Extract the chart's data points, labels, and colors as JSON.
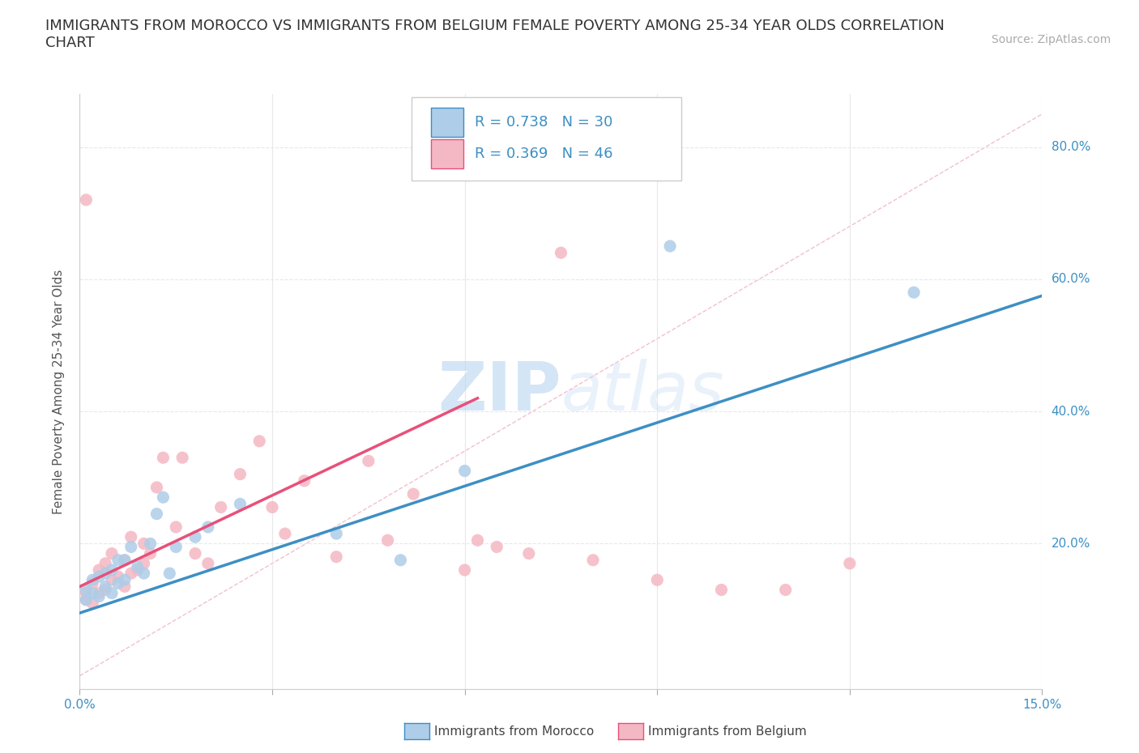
{
  "title": "IMMIGRANTS FROM MOROCCO VS IMMIGRANTS FROM BELGIUM FEMALE POVERTY AMONG 25-34 YEAR OLDS CORRELATION\nCHART",
  "source_text": "Source: ZipAtlas.com",
  "ylabel": "Female Poverty Among 25-34 Year Olds",
  "xlim": [
    0.0,
    0.15
  ],
  "ylim": [
    -0.02,
    0.88
  ],
  "xticks": [
    0.0,
    0.03,
    0.06,
    0.09,
    0.12,
    0.15
  ],
  "xtick_labels": [
    "0.0%",
    "",
    "",
    "",
    "",
    "15.0%"
  ],
  "ytick_labels": [
    "20.0%",
    "40.0%",
    "60.0%",
    "80.0%"
  ],
  "yticks": [
    0.2,
    0.4,
    0.6,
    0.8
  ],
  "background_color": "#ffffff",
  "grid_color": "#e8e8e8",
  "watermark": "ZIPatlas",
  "color_morocco": "#aecde8",
  "color_belgium": "#f4b8c4",
  "trendline_color_morocco": "#3d8fc4",
  "trendline_color_belgium": "#e8507a",
  "diag_line_color": "#f0b0c0",
  "morocco_x": [
    0.001,
    0.001,
    0.002,
    0.002,
    0.003,
    0.003,
    0.004,
    0.004,
    0.005,
    0.005,
    0.006,
    0.006,
    0.007,
    0.007,
    0.008,
    0.009,
    0.01,
    0.011,
    0.012,
    0.013,
    0.014,
    0.015,
    0.018,
    0.02,
    0.025,
    0.04,
    0.05,
    0.06,
    0.092,
    0.13
  ],
  "morocco_y": [
    0.115,
    0.13,
    0.125,
    0.145,
    0.12,
    0.15,
    0.135,
    0.155,
    0.125,
    0.16,
    0.175,
    0.14,
    0.175,
    0.145,
    0.195,
    0.165,
    0.155,
    0.2,
    0.245,
    0.27,
    0.155,
    0.195,
    0.21,
    0.225,
    0.26,
    0.215,
    0.175,
    0.31,
    0.65,
    0.58
  ],
  "belgium_x": [
    0.001,
    0.001,
    0.001,
    0.002,
    0.002,
    0.003,
    0.003,
    0.004,
    0.004,
    0.005,
    0.005,
    0.006,
    0.007,
    0.007,
    0.008,
    0.008,
    0.009,
    0.01,
    0.01,
    0.011,
    0.012,
    0.013,
    0.015,
    0.016,
    0.018,
    0.02,
    0.022,
    0.025,
    0.028,
    0.03,
    0.032,
    0.035,
    0.04,
    0.045,
    0.048,
    0.052,
    0.06,
    0.062,
    0.065,
    0.07,
    0.075,
    0.08,
    0.09,
    0.1,
    0.11,
    0.12
  ],
  "belgium_y": [
    0.115,
    0.125,
    0.72,
    0.11,
    0.14,
    0.125,
    0.16,
    0.13,
    0.17,
    0.145,
    0.185,
    0.15,
    0.135,
    0.175,
    0.155,
    0.21,
    0.16,
    0.17,
    0.2,
    0.185,
    0.285,
    0.33,
    0.225,
    0.33,
    0.185,
    0.17,
    0.255,
    0.305,
    0.355,
    0.255,
    0.215,
    0.295,
    0.18,
    0.325,
    0.205,
    0.275,
    0.16,
    0.205,
    0.195,
    0.185,
    0.64,
    0.175,
    0.145,
    0.13,
    0.13,
    0.17
  ],
  "morocco_trendline_x0": 0.0,
  "morocco_trendline_y0": 0.095,
  "morocco_trendline_x1": 0.15,
  "morocco_trendline_y1": 0.575,
  "belgium_trendline_x0": 0.0,
  "belgium_trendline_y0": 0.135,
  "belgium_trendline_x1": 0.062,
  "belgium_trendline_y1": 0.42,
  "title_fontsize": 13,
  "axis_label_fontsize": 11,
  "tick_fontsize": 11,
  "legend_fontsize": 13,
  "source_fontsize": 10
}
